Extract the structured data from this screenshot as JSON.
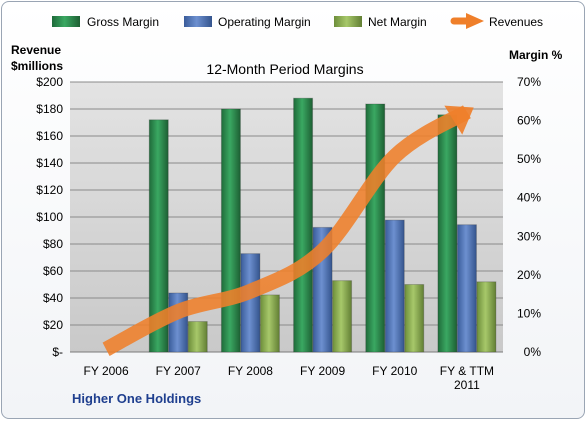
{
  "chart_data": {
    "type": "bar",
    "title": "12-Month Period Margins",
    "categories": [
      [
        "FY 2006"
      ],
      [
        "FY 2007"
      ],
      [
        "FY 2008"
      ],
      [
        "FY 2009"
      ],
      [
        "FY 2010"
      ],
      [
        "FY & TTM",
        "2011"
      ]
    ],
    "series": [
      {
        "name": "Gross Margin",
        "axis": "right",
        "values": [
          null,
          60.2,
          63.0,
          65.8,
          64.3,
          61.5
        ],
        "color": "#2e8b4e"
      },
      {
        "name": "Operating Margin",
        "axis": "right",
        "values": [
          null,
          15.3,
          25.5,
          32.3,
          34.2,
          33.0
        ],
        "color": "#4a6fb5"
      },
      {
        "name": "Net Margin",
        "axis": "right",
        "values": [
          null,
          7.9,
          14.8,
          18.5,
          17.5,
          18.2
        ],
        "color": "#8cb050"
      },
      {
        "name": "Revenues",
        "axis": "left",
        "type": "line",
        "values": [
          2,
          30,
          45,
          75,
          145,
          178
        ],
        "color": "#ef7f2a"
      }
    ],
    "left_axis": {
      "label": "Revenue $millions",
      "label_lines": [
        "Revenue",
        "$millions"
      ],
      "ylim": [
        0,
        200
      ],
      "ticks": [
        "$-",
        "$20",
        "$40",
        "$60",
        "$80",
        "$100",
        "$120",
        "$140",
        "$160",
        "$180",
        "$200"
      ]
    },
    "right_axis": {
      "label": "Margin %",
      "ylim": [
        0,
        70
      ],
      "ticks": [
        "0%",
        "10%",
        "20%",
        "30%",
        "40%",
        "50%",
        "60%",
        "70%"
      ]
    },
    "legend_position": "top",
    "grid": true
  },
  "footer": {
    "company": "Higher One Holdings"
  }
}
